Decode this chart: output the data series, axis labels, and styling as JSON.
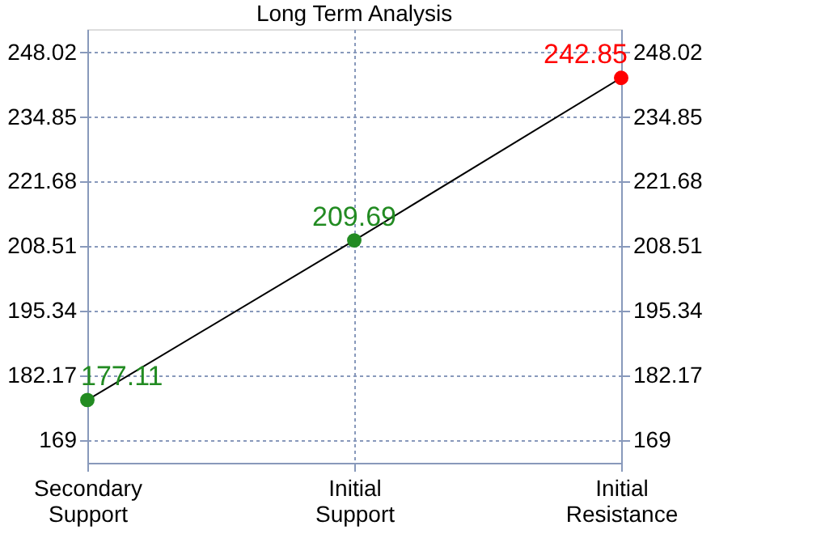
{
  "chart_data": {
    "type": "line",
    "title": "Long Term Analysis",
    "categories": [
      "Secondary Support",
      "Initial Support",
      "Initial Resistance"
    ],
    "series": [
      {
        "color": "#000000",
        "values": [
          177.11,
          209.69,
          242.85
        ],
        "colors": [
          "#228b22",
          "#228b22",
          "#ff0000"
        ]
      }
    ],
    "data_labels": true,
    "marker": "circle",
    "line_style": "solid",
    "grid": true,
    "ylim": [
      164.3,
      252.8
    ],
    "yticks": [
      169,
      182.17,
      195.34,
      208.51,
      221.68,
      234.85,
      248.02
    ],
    "y2lim": [
      164.3,
      252.8
    ],
    "y2ticks": [
      169,
      182.17,
      195.34,
      208.51,
      221.68,
      234.85,
      248.02
    ]
  }
}
